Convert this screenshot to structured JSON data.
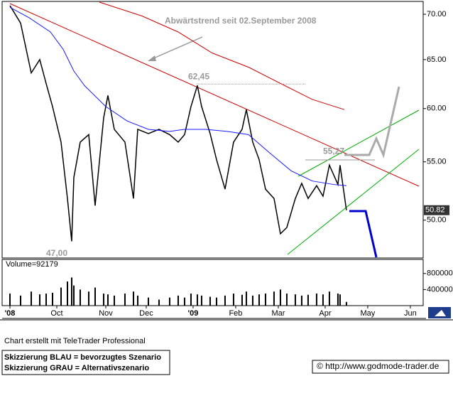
{
  "chart_data": [
    {
      "type": "line",
      "ylog": true,
      "ylim": [
        47,
        71.4
      ],
      "yticks": [
        {
          "value": 50,
          "label": "50.00"
        },
        {
          "value": 55,
          "label": "55.00"
        },
        {
          "value": 60,
          "label": "60.00"
        },
        {
          "value": 65,
          "label": "65.00"
        },
        {
          "value": 70,
          "label": "70.00"
        }
      ],
      "xlim": [
        -3,
        193.7
      ],
      "xticks": [
        {
          "value": 0,
          "label": "'08"
        },
        {
          "value": 22,
          "label": "Oct"
        },
        {
          "value": 45,
          "label": "Nov"
        },
        {
          "value": 64,
          "label": "Dec"
        },
        {
          "value": 86,
          "label": "'09"
        },
        {
          "value": 106,
          "label": "Feb"
        },
        {
          "value": 126,
          "label": "Mar"
        },
        {
          "value": 148,
          "label": "Apr"
        },
        {
          "value": 168,
          "label": "May"
        },
        {
          "value": 188,
          "label": "Jun"
        }
      ],
      "annotation": "Abwärtstrend seit 02.September 2008",
      "levels": [
        {
          "value": 62.45,
          "label": "62,45"
        },
        {
          "value": 55.27,
          "label": "55,27"
        },
        {
          "value": 47,
          "label": "47,00"
        }
      ],
      "last_value": 50.82,
      "series": [
        {
          "color": "#000000",
          "x": [
            0,
            5,
            10,
            14,
            17,
            20,
            24,
            27,
            29,
            30,
            33,
            37,
            40,
            44,
            46,
            49,
            54,
            58,
            60,
            65,
            70,
            75,
            79,
            82,
            85,
            88,
            90,
            94,
            97,
            101,
            105,
            109,
            111,
            114,
            117,
            120,
            124,
            127,
            130,
            134,
            137,
            140,
            144,
            147,
            150,
            154,
            155,
            158
          ],
          "values": [
            71,
            69,
            63.6,
            65,
            62.5,
            60.2,
            56.8,
            51.8,
            48.3,
            53.6,
            56.8,
            57.5,
            51.2,
            59.1,
            61.3,
            58,
            56.8,
            51.8,
            58,
            57.6,
            58,
            57.5,
            56.8,
            57.5,
            60.2,
            62.3,
            60.2,
            57.6,
            55.2,
            52.6,
            56.8,
            58,
            59.9,
            56.8,
            55.2,
            52.6,
            51.8,
            48.9,
            49.4,
            51.8,
            53.1,
            51.8,
            52.9,
            52,
            54.7,
            53,
            54.7,
            50.82
          ]
        },
        {
          "color": "#1a1aff",
          "x": [
            0,
            9,
            19,
            25,
            30,
            35,
            45,
            55,
            65,
            75,
            82,
            92,
            102,
            112,
            122,
            132,
            142,
            152,
            158
          ],
          "values": [
            70.8,
            69.6,
            68.0,
            66.1,
            63.8,
            62.3,
            60.2,
            58.8,
            58.0,
            57.8,
            58.0,
            58.0,
            57.8,
            57.5,
            55.8,
            54.2,
            53.3,
            53.0,
            52.9
          ]
        },
        {
          "color": "#cc0000",
          "x": [
            42,
            62,
            79,
            95,
            112,
            129,
            142,
            157
          ],
          "values": [
            71.4,
            69.8,
            68.0,
            65.7,
            64.2,
            62.3,
            60.9,
            59.9
          ]
        }
      ]
    },
    {
      "type": "bar",
      "label": "Volume=92179",
      "ylim": [
        0,
        1150000
      ],
      "yticks": [
        400000,
        800000
      ],
      "color": "#000000",
      "x": [
        0,
        5,
        10,
        14,
        17,
        20,
        24,
        27,
        29,
        30,
        33,
        37,
        40,
        44,
        46,
        49,
        54,
        58,
        60,
        65,
        70,
        75,
        79,
        82,
        85,
        88,
        90,
        94,
        97,
        101,
        105,
        109,
        111,
        114,
        117,
        120,
        124,
        127,
        130,
        134,
        137,
        140,
        144,
        147,
        150,
        154,
        155,
        158
      ],
      "values": [
        300000,
        250000,
        350000,
        280000,
        300000,
        320000,
        450000,
        600000,
        700000,
        500000,
        400000,
        350000,
        450000,
        300000,
        280000,
        250000,
        300000,
        350000,
        250000,
        200000,
        150000,
        200000,
        250000,
        200000,
        300000,
        280000,
        250000,
        220000,
        200000,
        250000,
        300000,
        270000,
        350000,
        250000,
        280000,
        300000,
        350000,
        400000,
        300000,
        280000,
        250000,
        270000,
        300000,
        280000,
        350000,
        300000,
        280000,
        92179
      ]
    }
  ],
  "footer": {
    "credit": "Chart erstellt mit TeleTrader Professional",
    "legend": [
      "Skizzierung BLAU = bevorzugtes Szenario",
      "Skizzierung GRAU = Alternativszenario"
    ],
    "source": "© http://www.godmode-trader.de"
  }
}
